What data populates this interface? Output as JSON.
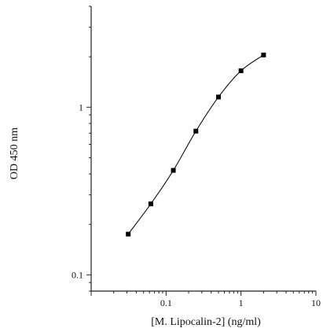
{
  "chart_data": {
    "type": "scatter",
    "title": "",
    "xlabel": "[M. Lipocalin-2] (ng/ml)",
    "ylabel": "OD 450 nm",
    "xscale": "log",
    "yscale": "log",
    "xlim": [
      0.01,
      10
    ],
    "ylim": [
      0.08,
      4
    ],
    "xticks": [
      {
        "value": 0.1,
        "label": "0.1"
      },
      {
        "value": 1,
        "label": "1"
      },
      {
        "value": 10,
        "label": "10"
      }
    ],
    "yticks": [
      {
        "value": 0.1,
        "label": "0.1"
      },
      {
        "value": 1,
        "label": "1"
      }
    ],
    "grid": false,
    "series": [
      {
        "marker": "square",
        "fitted_curve": true,
        "x": [
          0.03125,
          0.0625,
          0.125,
          0.25,
          0.5,
          1,
          2
        ],
        "y": [
          0.175,
          0.265,
          0.42,
          0.72,
          1.15,
          1.65,
          2.05
        ]
      }
    ]
  }
}
